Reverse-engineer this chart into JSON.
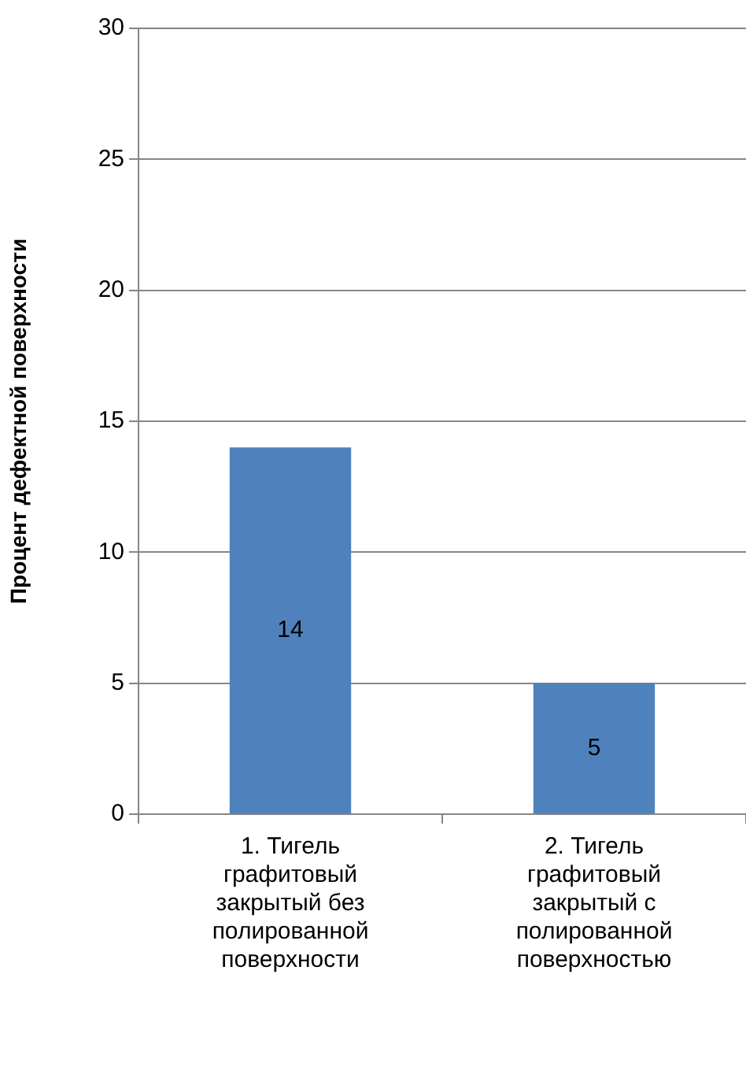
{
  "chart_data": {
    "type": "bar",
    "ylabel": "Процент дефектной поверхности",
    "categories": [
      "1. Тигель графитовый закрытый без полированной поверхности",
      "2. Тигель графитовый закрытый с полированной поверхностью"
    ],
    "values": [
      14,
      5
    ],
    "color": "#4f81bd",
    "ylim": [
      0,
      30
    ],
    "yticks": [
      0,
      5,
      10,
      15,
      20,
      25,
      30
    ],
    "grid": "y",
    "data_labels": true,
    "legend": false
  }
}
